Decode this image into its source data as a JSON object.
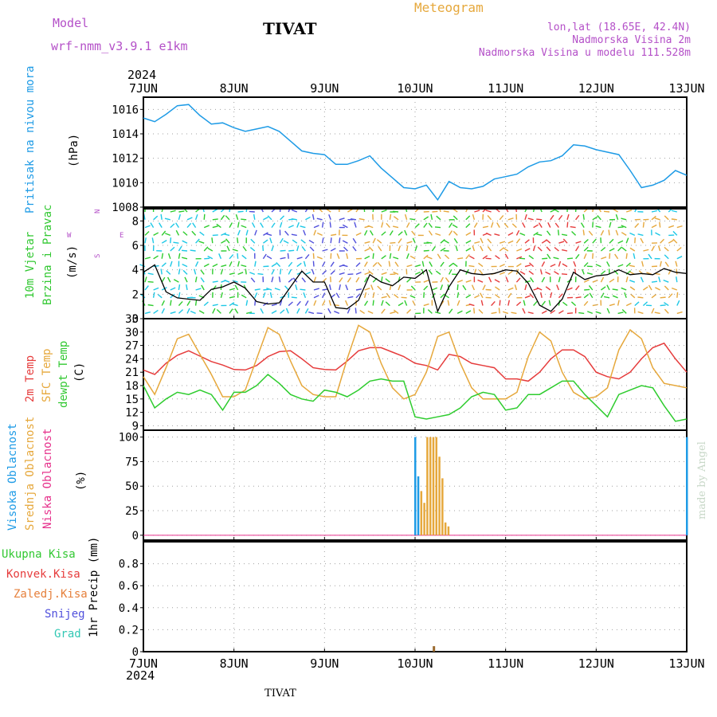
{
  "header": {
    "model_label": "Model",
    "model_name": "wrf-nmm_v3.9.1  e1km",
    "station_title": "TIVAT",
    "meteogram_label": "Meteogram",
    "lonlat": "lon,lat (18.65E, 42.4N)",
    "elevation": "Nadmorska Visina 2m",
    "model_elevation": "Nadmorska Visina u modelu 111.528m",
    "year_top": "2024",
    "year_bottom": "2024",
    "footer_station": "TIVAT",
    "watermark": "made by Angel"
  },
  "colors": {
    "pressure": "#1e9be6",
    "wind_speed": "#000000",
    "temp2m": "#e63c3c",
    "sfc_temp": "#e6a83c",
    "dewpt": "#2ecc2e",
    "cloud_high": "#1e9be6",
    "cloud_mid": "#e6a83c",
    "cloud_low": "#e6328c",
    "precip": "#9b6a2e",
    "grid": "#a0a0a0",
    "label_purple": "#b450c8",
    "label_orange": "#e6a83c",
    "label_green": "#32c832",
    "label_blue": "#1e9be6"
  },
  "x_ticks": [
    "7JUN",
    "8JUN",
    "9JUN",
    "10JUN",
    "11JUN",
    "12JUN",
    "13JUN"
  ],
  "panels": {
    "pressure": {
      "ylabel_name": "Pritisak na nivou mora",
      "unit": "(hPa)",
      "yticks": [
        "1008",
        "1010",
        "1012",
        "1014",
        "1016"
      ],
      "ylim": [
        1008,
        1017
      ]
    },
    "wind": {
      "ylabel_name_1": "10m Vjetar",
      "ylabel_name_2": "Brzina i Pravac",
      "unit": "(m/s)",
      "yticks": [
        "0",
        "2",
        "4",
        "6",
        "8"
      ],
      "ylim": [
        0,
        9
      ],
      "compass_w": "W",
      "compass_e": "E",
      "compass_n": "N",
      "compass_s": "S"
    },
    "temperature": {
      "label_2m": "2m Temp",
      "label_sfc": "SFC Temp",
      "label_dewpt": "dewpt Temp",
      "unit": "(C)",
      "yticks": [
        "9",
        "12",
        "15",
        "18",
        "21",
        "24",
        "27",
        "30",
        "33"
      ],
      "ylim": [
        8,
        33
      ]
    },
    "clouds": {
      "label_high": "Visoka Oblacnost",
      "label_mid": "Srednja Oblacnost",
      "label_low": "Niska Oblacnost",
      "unit": "(%)",
      "yticks": [
        "0",
        "25",
        "50",
        "75",
        "100"
      ],
      "ylim": [
        -5,
        107
      ]
    },
    "precip": {
      "legend": [
        "Ukupna Kisa",
        "Konvek.Kisa",
        "Zaledj.Kisa",
        "Snijeg",
        "Grad"
      ],
      "ylabel": "1hr Precip (mm)",
      "yticks": [
        "0",
        "0.2",
        "0.4",
        "0.6",
        "0.8"
      ],
      "ylim": [
        0,
        1.0
      ]
    }
  },
  "chart_data": [
    {
      "type": "line",
      "x_unit": "hours since 7JUN 00UTC",
      "series": [
        {
          "x": [
            0,
            3,
            6,
            9,
            12,
            15,
            18,
            21,
            24,
            27,
            30,
            33,
            36,
            39,
            42,
            45,
            48,
            51,
            54,
            57,
            60,
            63,
            66,
            69,
            72,
            75,
            78,
            81,
            84,
            87,
            90,
            93,
            96,
            99,
            102,
            105,
            108,
            111,
            114,
            117,
            120,
            123,
            126,
            129,
            132,
            135,
            138,
            141,
            144
          ],
          "values": [
            1015.3,
            1015.0,
            1015.6,
            1016.3,
            1016.4,
            1015.5,
            1014.8,
            1014.9,
            1014.5,
            1014.2,
            1014.4,
            1014.6,
            1014.2,
            1013.4,
            1012.6,
            1012.4,
            1012.3,
            1011.5,
            1011.5,
            1011.8,
            1012.2,
            1011.2,
            1010.4,
            1009.6,
            1009.5,
            1009.8,
            1008.6,
            1010.1,
            1009.6,
            1009.5,
            1009.7,
            1010.3,
            1010.5,
            1010.7,
            1011.3,
            1011.7,
            1011.8,
            1012.2,
            1013.1,
            1013.0,
            1012.7,
            1012.5,
            1012.3,
            1011.0,
            1009.6,
            1009.8,
            1010.2,
            1011.0,
            1010.6
          ]
        }
      ],
      "ylim": [
        1008,
        1017
      ]
    },
    {
      "type": "line",
      "x_unit": "hours since 7JUN 00UTC",
      "series": [
        {
          "x": [
            0,
            3,
            6,
            9,
            12,
            15,
            18,
            21,
            24,
            27,
            30,
            33,
            36,
            39,
            42,
            45,
            48,
            51,
            54,
            57,
            60,
            63,
            66,
            69,
            72,
            75,
            78,
            81,
            84,
            87,
            90,
            93,
            96,
            99,
            102,
            105,
            108,
            111,
            114,
            117,
            120,
            123,
            126,
            129,
            132,
            135,
            138,
            141,
            144
          ],
          "values": [
            3.8,
            4.4,
            2.2,
            1.7,
            1.6,
            1.5,
            2.4,
            2.6,
            3.0,
            2.5,
            1.4,
            1.2,
            1.3,
            2.6,
            3.9,
            3.0,
            3.0,
            0.9,
            0.8,
            1.5,
            3.6,
            3.0,
            2.7,
            3.4,
            3.3,
            4.0,
            0.6,
            2.6,
            4.0,
            3.7,
            3.6,
            3.7,
            4.0,
            3.9,
            2.9,
            1.1,
            0.6,
            1.6,
            3.8,
            3.2,
            3.5,
            3.6,
            4.0,
            3.6,
            3.7,
            3.6,
            4.1,
            3.8,
            3.7
          ]
        }
      ],
      "ylim": [
        0,
        9
      ]
    },
    {
      "type": "line",
      "x_unit": "hours since 7JUN 00UTC",
      "series": [
        {
          "x": [
            0,
            3,
            6,
            9,
            12,
            15,
            18,
            21,
            24,
            27,
            30,
            33,
            36,
            39,
            42,
            45,
            48,
            51,
            54,
            57,
            60,
            63,
            66,
            69,
            72,
            75,
            78,
            81,
            84,
            87,
            90,
            93,
            96,
            99,
            102,
            105,
            108,
            111,
            114,
            117,
            120,
            123,
            126,
            129,
            132,
            135,
            138,
            141,
            144
          ],
          "values": [
            21.5,
            20.5,
            23.0,
            24.8,
            25.8,
            24.6,
            23.4,
            22.6,
            21.6,
            21.5,
            22.5,
            24.5,
            25.6,
            25.8,
            24.0,
            22.0,
            21.6,
            21.5,
            23.5,
            25.8,
            26.5,
            26.5,
            25.5,
            24.5,
            23.0,
            22.5,
            21.5,
            25.0,
            24.5,
            23.0,
            22.5,
            22.0,
            19.5,
            19.5,
            19.0,
            21.0,
            24.0,
            26.0,
            26.0,
            24.5,
            21.0,
            20.0,
            19.5,
            21.0,
            24.0,
            26.5,
            27.5,
            24.0,
            21.0
          ]
        },
        {
          "x": [
            0,
            3,
            6,
            9,
            12,
            15,
            18,
            21,
            24,
            27,
            30,
            33,
            36,
            39,
            42,
            45,
            48,
            51,
            54,
            57,
            60,
            63,
            66,
            69,
            72,
            75,
            78,
            81,
            84,
            87,
            90,
            93,
            96,
            99,
            102,
            105,
            108,
            111,
            114,
            117,
            120,
            123,
            126,
            129,
            132,
            135,
            138,
            141,
            144
          ],
          "values": [
            20.0,
            16.0,
            22.0,
            28.5,
            29.5,
            25.0,
            20.5,
            15.5,
            15.5,
            17.0,
            24.0,
            31.0,
            29.5,
            23.5,
            18.0,
            16.0,
            15.5,
            15.5,
            24.0,
            31.5,
            30.0,
            23.0,
            17.5,
            15.0,
            16.0,
            21.0,
            29.0,
            30.0,
            23.0,
            17.5,
            15.0,
            15.0,
            15.0,
            16.5,
            24.5,
            30.0,
            28.0,
            21.0,
            16.5,
            15.0,
            15.5,
            17.5,
            26.0,
            30.5,
            28.5,
            22.0,
            18.5,
            18.0,
            17.5
          ]
        },
        {
          "x": [
            0,
            3,
            6,
            9,
            12,
            15,
            18,
            21,
            24,
            27,
            30,
            33,
            36,
            39,
            42,
            45,
            48,
            51,
            54,
            57,
            60,
            63,
            66,
            69,
            72,
            75,
            78,
            81,
            84,
            87,
            90,
            93,
            96,
            99,
            102,
            105,
            108,
            111,
            114,
            117,
            120,
            123,
            126,
            129,
            132,
            135,
            138,
            141,
            144
          ],
          "values": [
            18.0,
            13.0,
            15.0,
            16.5,
            16.0,
            17.0,
            16.0,
            12.5,
            16.5,
            16.5,
            18.0,
            20.5,
            18.5,
            16.0,
            15.0,
            14.5,
            17.0,
            16.5,
            15.5,
            17.0,
            19.0,
            19.5,
            19.0,
            19.0,
            11.0,
            10.5,
            11.0,
            11.5,
            13.0,
            15.5,
            16.5,
            16.0,
            12.5,
            13.0,
            16.0,
            16.0,
            17.5,
            19.0,
            19.0,
            16.0,
            13.5,
            11.0,
            16.0,
            17.0,
            18.0,
            17.5,
            13.5,
            10.0,
            10.5
          ]
        }
      ],
      "ylim": [
        8,
        33
      ]
    },
    {
      "type": "bar",
      "x_unit": "hours since 7JUN 00UTC",
      "series": [
        {
          "x": [
            72.0,
            72.8
          ],
          "values": [
            100,
            60
          ]
        },
        {
          "x": [
            73.6,
            74.4,
            75.2,
            76.0,
            76.8,
            77.6,
            78.4,
            79.2,
            80.0,
            80.8,
            81.6
          ],
          "values": [
            45,
            33,
            100,
            100,
            100,
            100,
            80,
            58,
            13,
            9,
            0
          ]
        },
        {
          "x": [
            144.0
          ],
          "values": [
            100
          ]
        }
      ],
      "ylim": [
        -5,
        107
      ]
    },
    {
      "type": "bar",
      "x_unit": "hours since 7JUN 00UTC",
      "series": [
        {
          "x": [
            77.0
          ],
          "values": [
            0.05
          ]
        }
      ],
      "ylim": [
        0,
        1.0
      ]
    }
  ]
}
